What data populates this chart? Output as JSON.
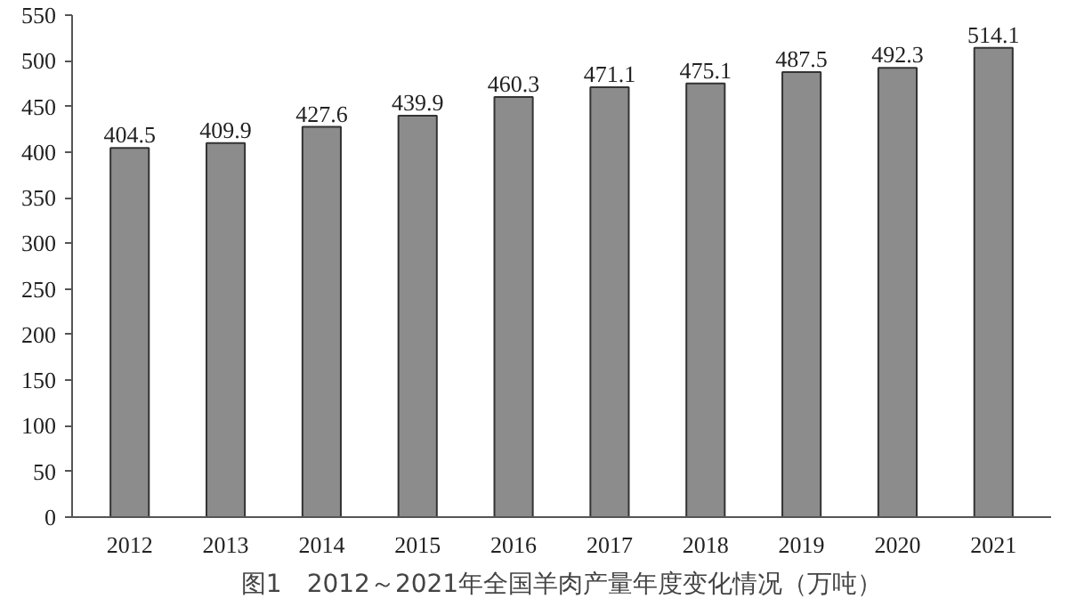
{
  "chart_data": {
    "type": "bar",
    "title": "图1　2012～2021年全国羊肉产量年度变化情况（万吨）",
    "categories": [
      "2012",
      "2013",
      "2014",
      "2015",
      "2016",
      "2017",
      "2018",
      "2019",
      "2020",
      "2021"
    ],
    "values": [
      404.5,
      409.9,
      427.6,
      439.9,
      460.3,
      471.1,
      475.1,
      487.5,
      492.3,
      514.1
    ],
    "color": "#8c8c8c",
    "data_labels": true,
    "grid": false,
    "ylim": [
      0,
      550
    ],
    "yticks": [
      0,
      50,
      100,
      150,
      200,
      250,
      300,
      350,
      400,
      450,
      500,
      550
    ]
  }
}
